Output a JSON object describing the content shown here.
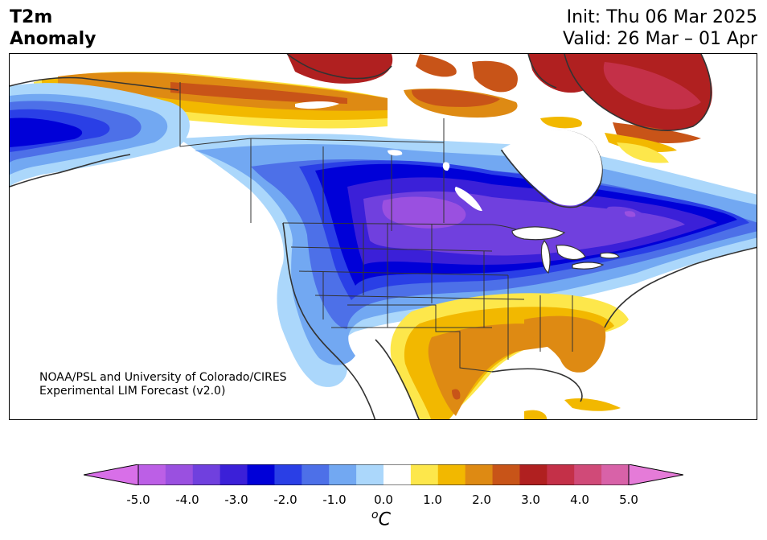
{
  "header": {
    "variable": "T2m",
    "quantity": "Anomaly",
    "init": "Init: Thu 06 Mar 2025",
    "valid": "Valid: 26 Mar – 01 Apr"
  },
  "credit": {
    "line1": "NOAA/PSL and University of Colorado/CIRES",
    "line2": "Experimental LIM Forecast (v2.0)"
  },
  "colorbar": {
    "unit": "C",
    "unit_superscript": "o",
    "ticks": [
      "-5.0",
      "-4.0",
      "-3.0",
      "-2.0",
      "-1.0",
      "0.0",
      "1.0",
      "2.0",
      "3.0",
      "4.0",
      "5.0"
    ],
    "range": [
      -5.0,
      5.0
    ],
    "step": 0.5,
    "extend": "both",
    "colors": {
      "below_min": "#d86fe8",
      "n5.0_n4.5": "#bc5fe6",
      "n4.5_n4.0": "#9a50e0",
      "n4.0_n3.5": "#7040de",
      "n3.5_n3.0": "#3b20d8",
      "n3.0_n2.5": "#0000d8",
      "n2.5_n2.0": "#2a3fe6",
      "n2.0_n1.5": "#4d70e8",
      "n1.5_n1.0": "#72a8f2",
      "n1.0_n0.5": "#abd7fb",
      "n0.5_0.5": "#ffffff",
      "0.5_1.0": "#fde74b",
      "1.0_1.5": "#f2b800",
      "1.5_2.0": "#de8a13",
      "2.0_2.5": "#c85418",
      "2.5_3.0": "#b02020",
      "3.0_3.5": "#c43048",
      "3.5_4.0": "#d04a78",
      "4.0_4.5": "#d862a8",
      "above_max": "#e57bd8"
    }
  },
  "map": {
    "region": "North America",
    "features": [
      "state-borders",
      "province-borders",
      "coastlines",
      "great-lakes"
    ],
    "anomaly_regions": [
      {
        "name": "Canadian Prairies / Northern Plains",
        "category": "n4.5_n4.0"
      },
      {
        "name": "Eastern Canada / Quebec",
        "category": "n4.0_n3.5"
      },
      {
        "name": "Alaska",
        "category": "n2.5_n2.0"
      },
      {
        "name": "Arctic Islands",
        "category": "2.5_3.0"
      },
      {
        "name": "Greenland",
        "category": "2.5_3.0"
      },
      {
        "name": "Texas / Southeast US",
        "category": "1.5_2.0"
      }
    ]
  }
}
